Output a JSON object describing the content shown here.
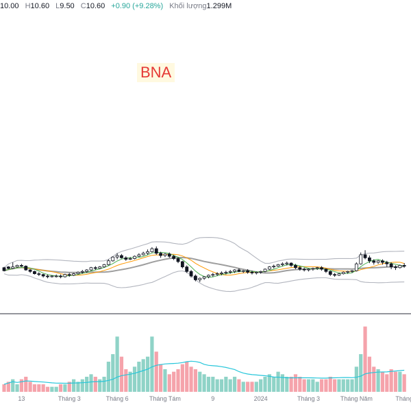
{
  "header": {
    "open": "10.00",
    "high_label": "H",
    "high": "10.60",
    "low_label": "L",
    "low": "9.50",
    "close_label": "C",
    "close": "10.60",
    "change": "+0.90 (+9.28%)",
    "volume_label": "Khối lượng",
    "volume": "1.299M"
  },
  "ticker": "BNA",
  "colors": {
    "up": "#26a69a",
    "down": "#ef5350",
    "vol_up": "#8fd3c7",
    "vol_down": "#f5a3ab",
    "band": "#b2b5be",
    "ma_fast": "#4caf50",
    "ma_mid": "#ff9800",
    "ma_slow": "#9e9e9e",
    "vol_ma": "#26c6da"
  },
  "chart_data": {
    "type": "candlestick",
    "x_tick_labels": [
      "13",
      "Tháng 3",
      "Tháng 6",
      "Tháng Tám",
      "9",
      "2024",
      "Tháng 3",
      "Tháng Năm",
      "Tháng"
    ],
    "x_tick_positions": [
      4,
      15,
      26,
      37,
      48,
      59,
      70,
      81,
      92
    ],
    "price_range": [
      4,
      18
    ],
    "volume_range": [
      0,
      30
    ],
    "candles": [
      [
        8.9,
        9.0,
        8.5,
        8.4,
        3
      ],
      [
        9.0,
        9.1,
        8.8,
        8.7,
        4
      ],
      [
        8.8,
        9.6,
        9.0,
        8.7,
        5
      ],
      [
        9.0,
        9.3,
        9.2,
        8.9,
        3
      ],
      [
        9.2,
        9.4,
        9.1,
        9.0,
        5
      ],
      [
        9.1,
        9.2,
        8.6,
        8.5,
        6
      ],
      [
        8.6,
        8.7,
        8.4,
        8.2,
        4
      ],
      [
        8.4,
        8.5,
        8.1,
        8.0,
        3
      ],
      [
        8.1,
        8.3,
        8.0,
        7.8,
        3
      ],
      [
        8.0,
        8.1,
        7.8,
        7.6,
        3
      ],
      [
        7.8,
        8.0,
        7.7,
        7.5,
        2
      ],
      [
        7.7,
        7.9,
        7.8,
        7.6,
        2
      ],
      [
        7.8,
        8.0,
        7.8,
        7.6,
        2
      ],
      [
        7.8,
        8.0,
        7.7,
        7.5,
        3
      ],
      [
        7.7,
        8.1,
        8.0,
        7.6,
        3
      ],
      [
        8.0,
        8.2,
        7.9,
        7.7,
        4
      ],
      [
        7.9,
        8.2,
        8.1,
        7.8,
        5
      ],
      [
        8.1,
        8.4,
        8.3,
        8.0,
        4
      ],
      [
        8.3,
        8.6,
        8.4,
        8.1,
        5
      ],
      [
        8.4,
        8.7,
        8.6,
        8.2,
        6
      ],
      [
        8.6,
        9.0,
        8.9,
        8.5,
        7
      ],
      [
        8.9,
        9.1,
        8.8,
        8.6,
        6
      ],
      [
        8.8,
        9.1,
        9.0,
        8.7,
        5
      ],
      [
        9.0,
        9.4,
        9.3,
        8.9,
        6
      ],
      [
        9.3,
        10.0,
        9.8,
        9.2,
        12
      ],
      [
        9.8,
        10.4,
        10.3,
        9.7,
        15
      ],
      [
        10.3,
        10.8,
        10.5,
        10.0,
        22
      ],
      [
        10.5,
        10.7,
        10.2,
        10.1,
        14
      ],
      [
        10.2,
        10.4,
        10.0,
        9.8,
        9
      ],
      [
        10.0,
        10.3,
        10.1,
        9.9,
        8
      ],
      [
        10.1,
        10.5,
        10.4,
        10.0,
        10
      ],
      [
        10.4,
        10.8,
        10.6,
        10.3,
        12
      ],
      [
        10.6,
        11.0,
        10.8,
        10.5,
        13
      ],
      [
        10.8,
        11.3,
        11.0,
        10.6,
        14
      ],
      [
        11.0,
        11.6,
        11.4,
        10.9,
        22
      ],
      [
        11.4,
        11.7,
        10.8,
        10.6,
        16
      ],
      [
        10.8,
        11.0,
        10.5,
        10.2,
        11
      ],
      [
        10.5,
        10.8,
        10.7,
        10.3,
        9
      ],
      [
        10.7,
        10.9,
        10.4,
        10.2,
        7
      ],
      [
        10.4,
        10.6,
        10.1,
        9.9,
        8
      ],
      [
        10.1,
        10.3,
        9.7,
        9.5,
        9
      ],
      [
        9.7,
        9.8,
        9.0,
        8.8,
        11
      ],
      [
        9.0,
        9.2,
        8.4,
        8.2,
        12
      ],
      [
        8.4,
        8.6,
        7.8,
        7.6,
        10
      ],
      [
        7.8,
        8.0,
        7.3,
        7.1,
        9
      ],
      [
        7.3,
        7.6,
        7.5,
        7.0,
        8
      ],
      [
        7.5,
        7.8,
        7.7,
        7.3,
        7
      ],
      [
        7.7,
        8.0,
        7.9,
        7.5,
        6
      ],
      [
        7.9,
        8.2,
        8.0,
        7.7,
        6
      ],
      [
        8.0,
        8.3,
        8.1,
        7.8,
        5
      ],
      [
        8.1,
        8.4,
        8.2,
        7.9,
        5
      ],
      [
        8.2,
        8.5,
        8.3,
        8.0,
        6
      ],
      [
        8.3,
        8.6,
        8.4,
        8.1,
        5
      ],
      [
        8.4,
        8.7,
        8.6,
        8.2,
        6
      ],
      [
        8.6,
        8.8,
        8.4,
        8.3,
        5
      ],
      [
        8.4,
        8.6,
        8.5,
        8.2,
        4
      ],
      [
        8.5,
        8.7,
        8.3,
        8.1,
        4
      ],
      [
        8.3,
        8.5,
        8.2,
        8.0,
        4
      ],
      [
        8.2,
        8.4,
        8.3,
        8.0,
        4
      ],
      [
        8.3,
        8.5,
        8.4,
        8.1,
        5
      ],
      [
        8.4,
        8.8,
        8.7,
        8.3,
        6
      ],
      [
        8.7,
        9.1,
        9.0,
        8.6,
        7
      ],
      [
        9.0,
        9.3,
        9.1,
        8.8,
        6
      ],
      [
        9.1,
        9.4,
        9.3,
        9.0,
        8
      ],
      [
        9.3,
        9.6,
        9.4,
        9.1,
        7
      ],
      [
        9.4,
        9.7,
        9.5,
        9.2,
        6
      ],
      [
        9.5,
        9.6,
        9.2,
        9.0,
        6
      ],
      [
        9.2,
        9.4,
        8.9,
        8.7,
        7
      ],
      [
        8.9,
        9.1,
        8.7,
        8.5,
        6
      ],
      [
        8.7,
        8.9,
        8.6,
        8.4,
        5
      ],
      [
        8.6,
        8.8,
        8.7,
        8.4,
        5
      ],
      [
        8.7,
        8.9,
        8.8,
        8.5,
        5
      ],
      [
        8.8,
        9.0,
        8.9,
        8.6,
        4
      ],
      [
        8.9,
        9.1,
        8.7,
        8.5,
        5
      ],
      [
        8.7,
        8.8,
        8.4,
        8.2,
        5
      ],
      [
        8.4,
        8.5,
        8.0,
        7.8,
        6
      ],
      [
        8.0,
        8.2,
        7.9,
        7.7,
        5
      ],
      [
        7.9,
        8.2,
        8.1,
        7.8,
        5
      ],
      [
        8.1,
        8.4,
        8.3,
        8.0,
        5
      ],
      [
        8.3,
        8.5,
        8.4,
        8.1,
        5
      ],
      [
        8.4,
        8.6,
        8.5,
        8.2,
        5
      ],
      [
        8.5,
        9.6,
        9.4,
        8.4,
        10
      ],
      [
        9.4,
        10.9,
        10.6,
        9.3,
        15
      ],
      [
        10.6,
        11.2,
        10.2,
        10.0,
        26
      ],
      [
        10.2,
        10.5,
        9.8,
        9.5,
        14
      ],
      [
        9.8,
        10.0,
        9.6,
        9.3,
        10
      ],
      [
        9.6,
        9.9,
        9.8,
        9.4,
        9
      ],
      [
        9.8,
        10.0,
        9.6,
        9.3,
        8
      ],
      [
        9.6,
        9.8,
        9.4,
        9.0,
        7
      ],
      [
        9.4,
        9.6,
        9.0,
        8.7,
        9
      ],
      [
        9.0,
        9.2,
        8.9,
        8.6,
        8
      ],
      [
        8.9,
        9.3,
        9.2,
        8.8,
        8
      ],
      [
        9.2,
        9.5,
        9.1,
        8.9,
        7
      ]
    ]
  }
}
